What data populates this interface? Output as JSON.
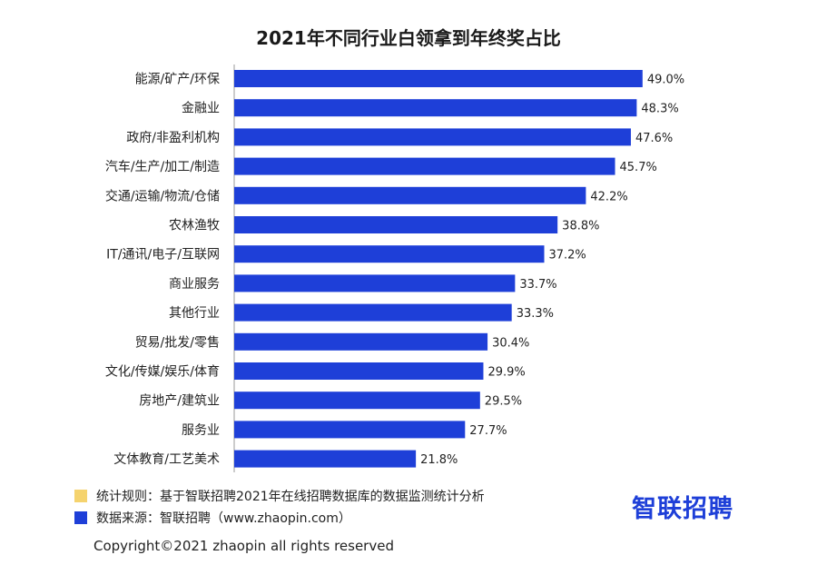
{
  "chart_data": {
    "type": "bar",
    "orientation": "horizontal",
    "title": "2021年不同行业白领拿到年终奖占比",
    "categories": [
      "能源/矿产/环保",
      "金融业",
      "政府/非盈利机构",
      "汽车/生产/加工/制造",
      "交通/运输/物流/仓储",
      "农林渔牧",
      "IT/通讯/电子/互联网",
      "商业服务",
      "其他行业",
      "贸易/批发/零售",
      "文化/传媒/娱乐/体育",
      "房地产/建筑业",
      "服务业",
      "文体教育/工艺美术"
    ],
    "values": [
      49.0,
      48.3,
      47.6,
      45.7,
      42.2,
      38.8,
      37.2,
      33.7,
      33.3,
      30.4,
      29.9,
      29.5,
      27.7,
      21.8
    ],
    "value_labels": [
      "49.0%",
      "48.3%",
      "47.6%",
      "45.7%",
      "42.2%",
      "38.8%",
      "37.2%",
      "33.7%",
      "33.3%",
      "30.4%",
      "29.9%",
      "29.5%",
      "27.7%",
      "21.8%"
    ],
    "unit": "%",
    "xlim": [
      0,
      55
    ],
    "grid": false,
    "bar_color": "#1e3fd8"
  },
  "notes": [
    {
      "text": "统计规则：基于智联招聘2021年在线招聘数据库的数据监测统计分析",
      "color": "#f5d36e"
    },
    {
      "text": "数据来源：智联招聘（www.zhaopin.com）",
      "color": "#1e3fd8"
    }
  ],
  "brand": "智联招聘",
  "copyright": "Copyright©2021 zhaopin all rights reserved"
}
